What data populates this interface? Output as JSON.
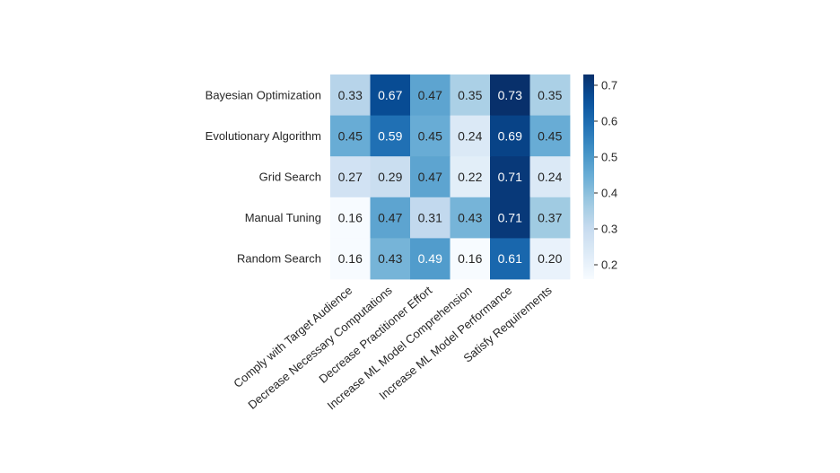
{
  "chart_data": {
    "type": "heatmap",
    "rows": [
      "Bayesian Optimization",
      "Evolutionary Algorithm",
      "Grid Search",
      "Manual Tuning",
      "Random Search"
    ],
    "columns": [
      "Comply with Target Audience",
      "Decrease Necessary Computations",
      "Decrease Practitioner Effort",
      "Increase ML Model Comprehension",
      "Increase ML Model Performance",
      "Satisfy Requirements"
    ],
    "values": [
      [
        0.33,
        0.67,
        0.47,
        0.35,
        0.73,
        0.35
      ],
      [
        0.45,
        0.59,
        0.45,
        0.24,
        0.69,
        0.45
      ],
      [
        0.27,
        0.29,
        0.47,
        0.22,
        0.71,
        0.24
      ],
      [
        0.16,
        0.47,
        0.31,
        0.43,
        0.71,
        0.37
      ],
      [
        0.16,
        0.43,
        0.49,
        0.16,
        0.61,
        0.2
      ]
    ],
    "value_labels": [
      [
        "0.33",
        "0.67",
        "0.47",
        "0.35",
        "0.73",
        "0.35"
      ],
      [
        "0.45",
        "0.59",
        "0.45",
        "0.24",
        "0.69",
        "0.45"
      ],
      [
        "0.27",
        "0.29",
        "0.47",
        "0.22",
        "0.71",
        "0.24"
      ],
      [
        "0.16",
        "0.47",
        "0.31",
        "0.43",
        "0.71",
        "0.37"
      ],
      [
        "0.16",
        "0.43",
        "0.49",
        "0.16",
        "0.61",
        "0.20"
      ]
    ],
    "colormap": "Blues",
    "colorbar": {
      "range": [
        0.16,
        0.73
      ],
      "ticks": [
        0.2,
        0.3,
        0.4,
        0.5,
        0.6,
        0.7
      ],
      "tick_labels": [
        "0.2",
        "0.3",
        "0.4",
        "0.5",
        "0.6",
        "0.7"
      ],
      "position": "right"
    },
    "colors": {
      "low": "#f7fbff",
      "high": "#08306b",
      "text_dark": "#262626",
      "text_light": "#ffffff"
    }
  }
}
